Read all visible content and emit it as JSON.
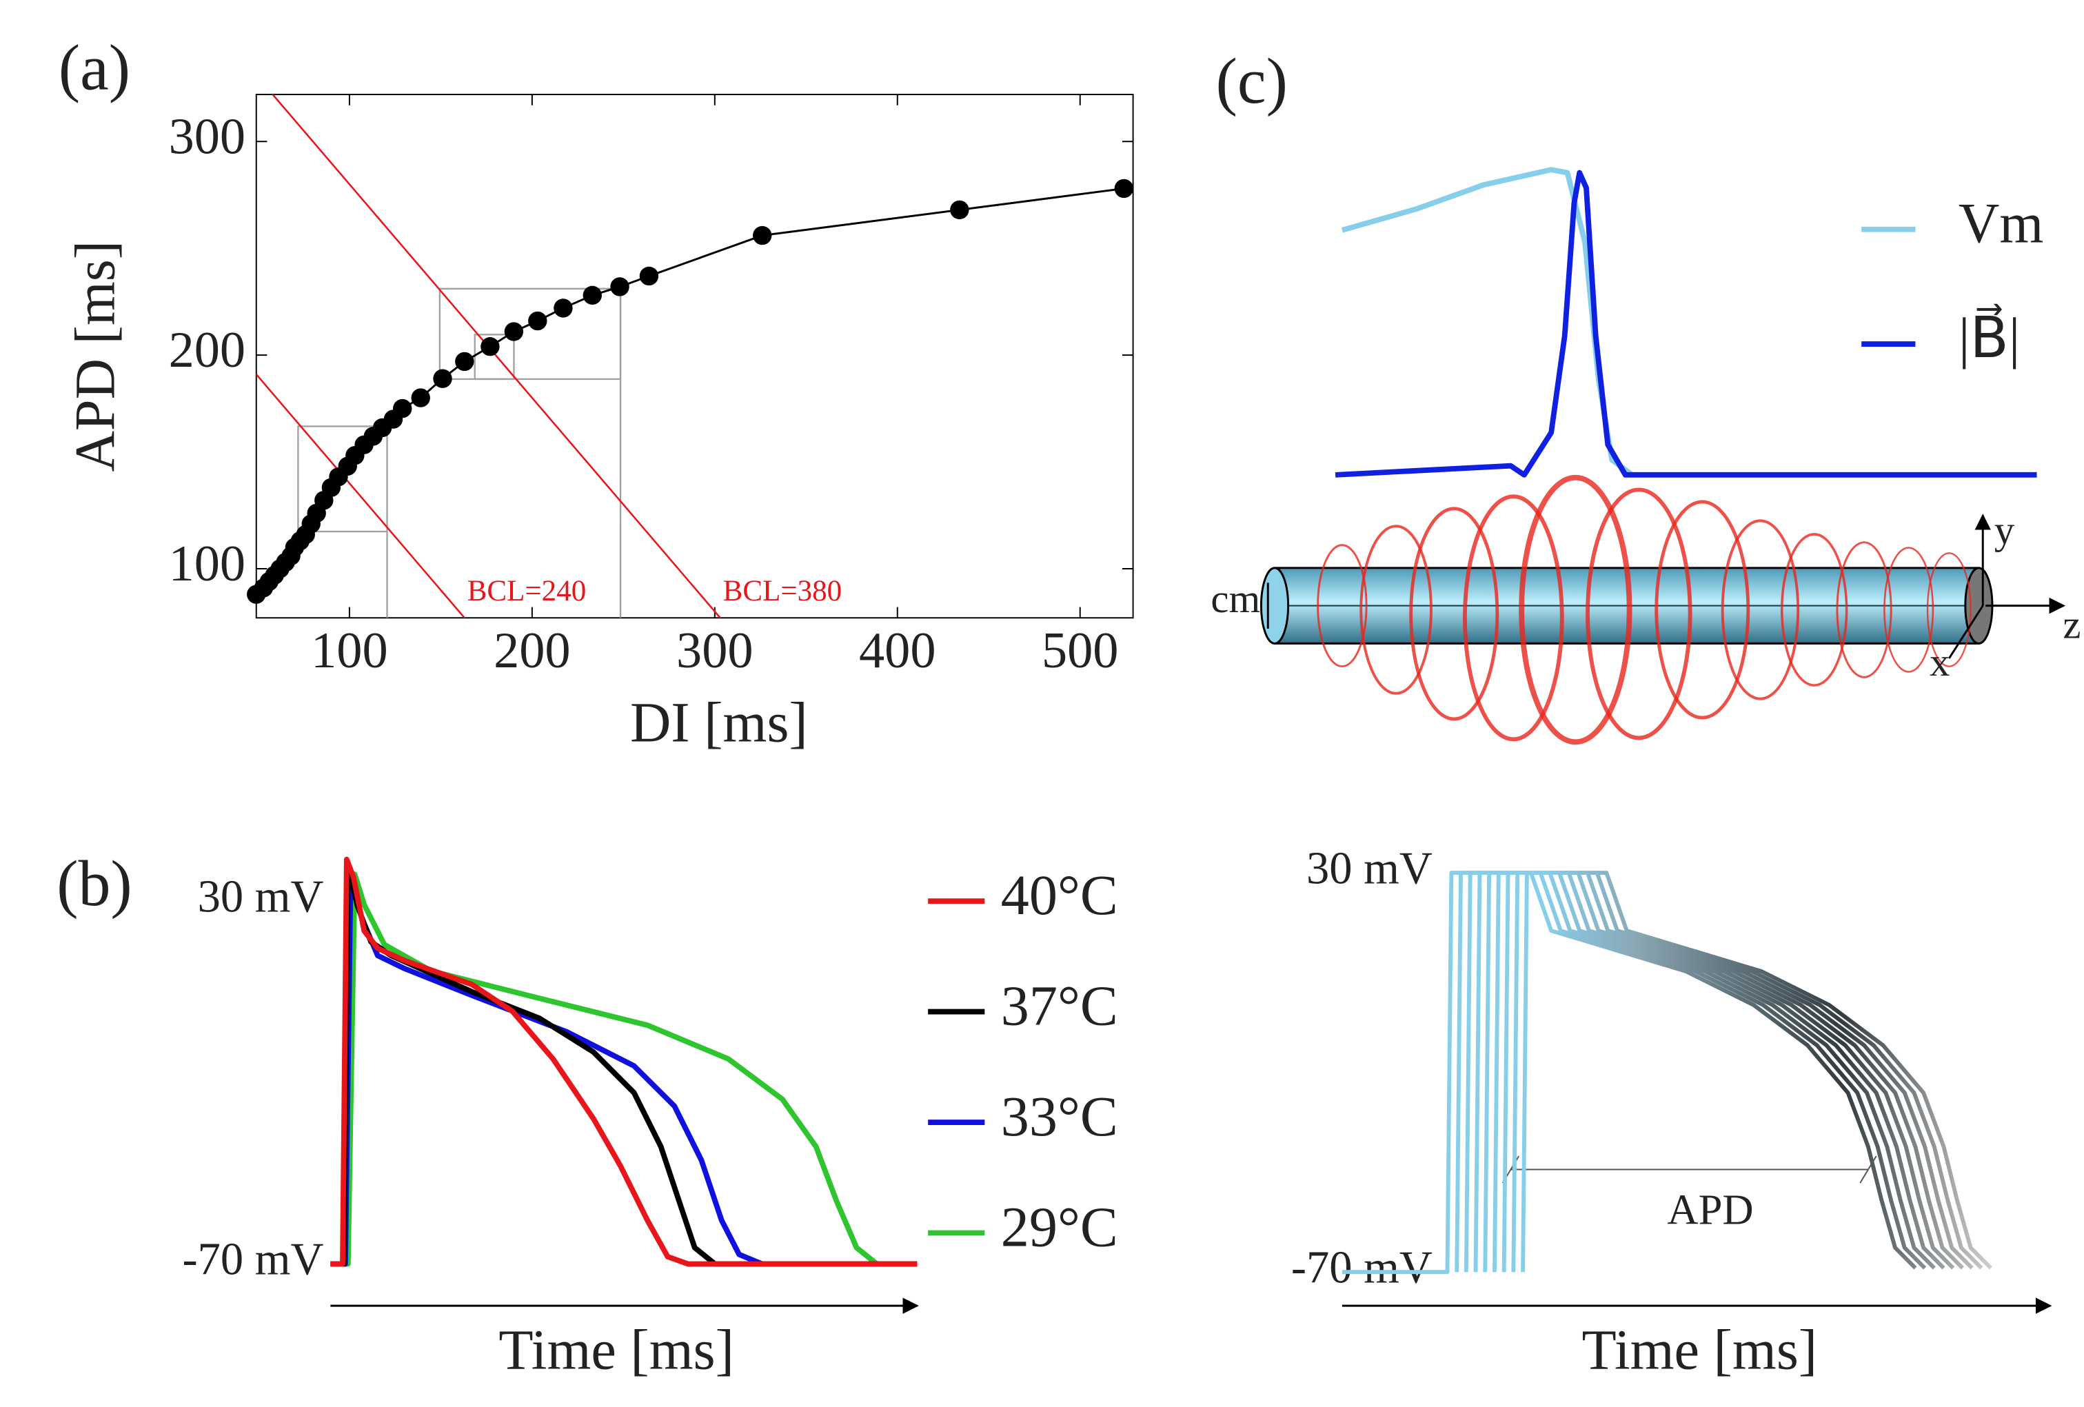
{
  "chart_data": [
    {
      "type": "scatter",
      "panel_label": "(a)",
      "xlabel": "DI [ms]",
      "ylabel": "APD [ms]",
      "x": [
        49,
        53,
        56,
        59,
        62,
        65,
        68,
        70,
        73,
        76,
        79,
        82,
        86,
        90,
        94,
        99,
        103,
        108,
        113,
        118,
        124,
        129,
        139,
        151,
        163,
        177,
        190,
        203,
        217,
        233,
        248,
        264,
        326,
        434,
        524
      ],
      "values": [
        88,
        91,
        94,
        97,
        100,
        103,
        106,
        110,
        113,
        116,
        121,
        126,
        132,
        138,
        143,
        148,
        153,
        158,
        162,
        166,
        170,
        175,
        180,
        189,
        197,
        204,
        211,
        216,
        222,
        228,
        232,
        237,
        256,
        268,
        278
      ],
      "color": "#000000",
      "xlim": [
        49,
        529
      ],
      "ylim": [
        77,
        322
      ],
      "xticks": [
        100,
        200,
        300,
        400,
        500
      ],
      "yticks": [
        100,
        200,
        300
      ],
      "reference_lines": [
        {
          "label": "BCL=240",
          "value": 240
        },
        {
          "label": "BCL=380",
          "value": 380
        }
      ],
      "reference_color": "#e8161b"
    },
    {
      "type": "line",
      "panel_label": "(b)",
      "xlabel": "Time [ms]",
      "xlim": [
        0,
        435
      ],
      "ylim": [
        -70,
        30
      ],
      "yticks": [
        {
          "value": 30,
          "label": "30 mV"
        },
        {
          "value": -70,
          "label": "-70 mV"
        }
      ],
      "series": [
        {
          "name": "40°C",
          "color": "#e8161b",
          "x": [
            0,
            9,
            12,
            17,
            25,
            35,
            55,
            105,
            135,
            165,
            195,
            215,
            235,
            250,
            265,
            435
          ],
          "values": [
            -70,
            -70,
            41.5,
            36.7,
            21.8,
            17,
            13.6,
            7,
            -0.4,
            -13.5,
            -30,
            -43,
            -58,
            -68,
            -70,
            -70
          ]
        },
        {
          "name": "37°C",
          "color": "#000000",
          "x": [
            0,
            10,
            13,
            20,
            30,
            45,
            105,
            155,
            195,
            225,
            245,
            260,
            270,
            285,
            435
          ],
          "values": [
            -70,
            -70,
            40,
            28.7,
            18.8,
            15,
            5,
            -2.3,
            -11.6,
            -22.8,
            -37.7,
            -54.4,
            -65.5,
            -70,
            -70
          ]
        },
        {
          "name": "33°C",
          "color": "#1010e0",
          "x": [
            0,
            11,
            15,
            23,
            35,
            55,
            105,
            175,
            225,
            255,
            275,
            290,
            303,
            320,
            435
          ],
          "values": [
            -70,
            -70,
            37.4,
            25.5,
            15,
            11.4,
            4,
            -6,
            -15.4,
            -26.5,
            -41.4,
            -58,
            -67.4,
            -70,
            -70
          ]
        },
        {
          "name": "29°C",
          "color": "#2fc52f",
          "x": [
            0,
            13,
            18,
            25,
            40,
            75,
            155,
            235,
            295,
            335,
            360,
            375,
            390,
            405,
            435
          ],
          "values": [
            -70,
            -70,
            37.4,
            29,
            18,
            10.7,
            3.2,
            -4.2,
            -13.5,
            -24.6,
            -37.7,
            -52.5,
            -65.5,
            -70,
            -70
          ]
        }
      ]
    },
    {
      "type": "line",
      "panel_label": "(c)",
      "xlim": [
        0,
        520
      ],
      "ylim": [
        0,
        1
      ],
      "series": [
        {
          "name": "Vm",
          "color": "#87ceeb",
          "x": [
            5,
            60,
            110,
            160,
            172,
            185,
            195,
            205,
            220
          ],
          "values": [
            0.81,
            0.88,
            0.96,
            1.01,
            1.0,
            0.77,
            0.32,
            0.05,
            0
          ]
        },
        {
          "name": "|B⃗|",
          "color": "#1020e0",
          "x": [
            0,
            130,
            140,
            160,
            170,
            177,
            181,
            186,
            193,
            202,
            215,
            520
          ],
          "values": [
            0,
            0.03,
            0,
            0.14,
            0.46,
            0.9,
            1.0,
            0.95,
            0.46,
            0.1,
            0,
            0
          ]
        }
      ],
      "diagram_labels": [
        "cm",
        "y",
        "z",
        "x"
      ]
    },
    {
      "type": "line",
      "xlabel": "Time [ms]",
      "annotation": "APD",
      "xlim": [
        0,
        525
      ],
      "ylim": [
        -70,
        30
      ],
      "yticks": [
        {
          "value": 30,
          "label": "30 mV"
        },
        {
          "value": -70,
          "label": "-70 mV"
        }
      ],
      "series": [
        {
          "color": "#87ceeb",
          "x": [
            0,
            78,
            81,
            140,
            155,
            205,
            255,
            305,
            345,
            375,
            390,
            400,
            410,
            425
          ],
          "values": [
            -70,
            -70,
            30,
            30,
            15.5,
            10.4,
            5.3,
            -3.1,
            -13.2,
            -25.1,
            -38.6,
            -52.1,
            -63.9,
            -69
          ]
        },
        {
          "color": "#87ceeb",
          "x": [
            85,
            88,
            147,
            162,
            212,
            262,
            312,
            352,
            382,
            397,
            407,
            417,
            432
          ],
          "values": [
            -70,
            30,
            30,
            15.5,
            10.4,
            5.3,
            -3.1,
            -13.2,
            -25.1,
            -38.6,
            -52.1,
            -63.9,
            -69
          ]
        },
        {
          "color": "#87ceeb",
          "x": [
            92,
            95,
            154,
            169,
            219,
            269,
            319,
            359,
            389,
            404,
            414,
            424,
            439
          ],
          "values": [
            -70,
            30,
            30,
            15.5,
            10.4,
            5.3,
            -3.1,
            -13.2,
            -25.1,
            -38.6,
            -52.1,
            -63.9,
            -69
          ]
        },
        {
          "color": "#87ceeb",
          "x": [
            99,
            102,
            161,
            176,
            226,
            276,
            326,
            366,
            396,
            411,
            421,
            431,
            446
          ],
          "values": [
            -70,
            30,
            30,
            15.5,
            10.4,
            5.3,
            -3.1,
            -13.2,
            -25.1,
            -38.6,
            -52.1,
            -63.9,
            -69
          ]
        },
        {
          "color": "#87ceeb",
          "x": [
            106,
            109,
            168,
            183,
            233,
            283,
            333,
            373,
            403,
            418,
            428,
            438,
            453
          ],
          "values": [
            -70,
            30,
            30,
            15.5,
            10.4,
            5.3,
            -3.1,
            -13.2,
            -25.1,
            -38.6,
            -52.1,
            -63.9,
            -69
          ]
        },
        {
          "color": "#87ceeb",
          "x": [
            113,
            116,
            175,
            190,
            240,
            290,
            340,
            380,
            410,
            425,
            435,
            445,
            460
          ],
          "values": [
            -70,
            30,
            30,
            15.5,
            10.4,
            5.3,
            -3.1,
            -13.2,
            -25.1,
            -38.6,
            -52.1,
            -63.9,
            -69
          ]
        },
        {
          "color": "#87ceeb",
          "x": [
            120,
            123,
            182,
            197,
            247,
            297,
            347,
            387,
            417,
            432,
            442,
            452,
            467
          ],
          "values": [
            -70,
            30,
            30,
            15.5,
            10.4,
            5.3,
            -3.1,
            -13.2,
            -25.1,
            -38.6,
            -52.1,
            -63.9,
            -69
          ]
        },
        {
          "color": "#87ceeb",
          "x": [
            127,
            130,
            189,
            204,
            254,
            304,
            354,
            394,
            424,
            439,
            449,
            459,
            474
          ],
          "values": [
            -70,
            30,
            30,
            15.5,
            10.4,
            5.3,
            -3.1,
            -13.2,
            -25.1,
            -38.6,
            -52.1,
            -63.9,
            -69
          ]
        },
        {
          "color": "#87ceeb",
          "x": [
            134,
            137,
            196,
            211,
            261,
            311,
            361,
            401,
            431,
            446,
            456,
            466,
            481
          ],
          "values": [
            -70,
            30,
            30,
            15.5,
            10.4,
            5.3,
            -3.1,
            -13.2,
            -25.1,
            -38.6,
            -52.1,
            -63.9,
            -69
          ]
        }
      ]
    }
  ]
}
